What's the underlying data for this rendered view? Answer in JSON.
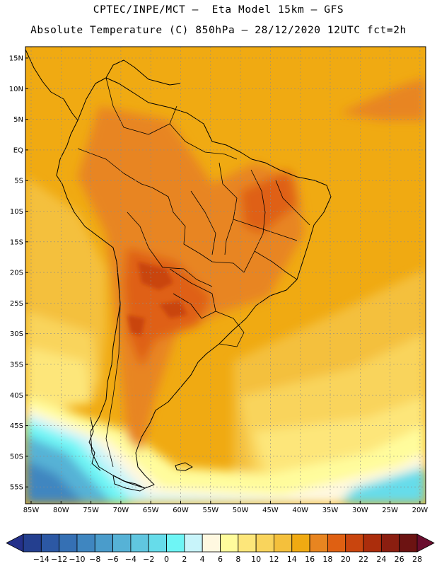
{
  "header": {
    "line1": "CPTEC/INPE/MCT –  Eta Model 15km – GFS",
    "line2": "Absolute Temperature (C) 850hPa – 28/12/2020 12UTC fct=2h"
  },
  "map": {
    "lat_labels": [
      "15N",
      "10N",
      "5N",
      "EQ",
      "5S",
      "10S",
      "15S",
      "20S",
      "25S",
      "30S",
      "35S",
      "40S",
      "45S",
      "50S",
      "55S"
    ],
    "lon_labels": [
      "85W",
      "80W",
      "75W",
      "70W",
      "65W",
      "60W",
      "55W",
      "50W",
      "45W",
      "40W",
      "35W",
      "30W",
      "25W",
      "20W"
    ]
  },
  "colorbar": {
    "labels": [
      "−14",
      "−12",
      "−10",
      "−8",
      "−6",
      "−4",
      "−2",
      "0",
      "2",
      "4",
      "6",
      "8",
      "10",
      "12",
      "14",
      "16",
      "18",
      "20",
      "22",
      "24",
      "26",
      "28"
    ],
    "colors": [
      "#243f8f",
      "#2c58a4",
      "#3570b4",
      "#3f86c0",
      "#4a9ccb",
      "#56b2d6",
      "#60c6e0",
      "#66dcea",
      "#6ef5f5",
      "#c8f4fa",
      "#fff8e0",
      "#fffc9c",
      "#fde67a",
      "#f9d45c",
      "#f4c03c",
      "#f0aa12",
      "#e88520",
      "#df6012",
      "#c9450e",
      "#ab2d0c",
      "#8b1e10",
      "#6c1312"
    ],
    "low_arrow_color": "#24308a",
    "high_arrow_color": "#6a0d2e"
  }
}
